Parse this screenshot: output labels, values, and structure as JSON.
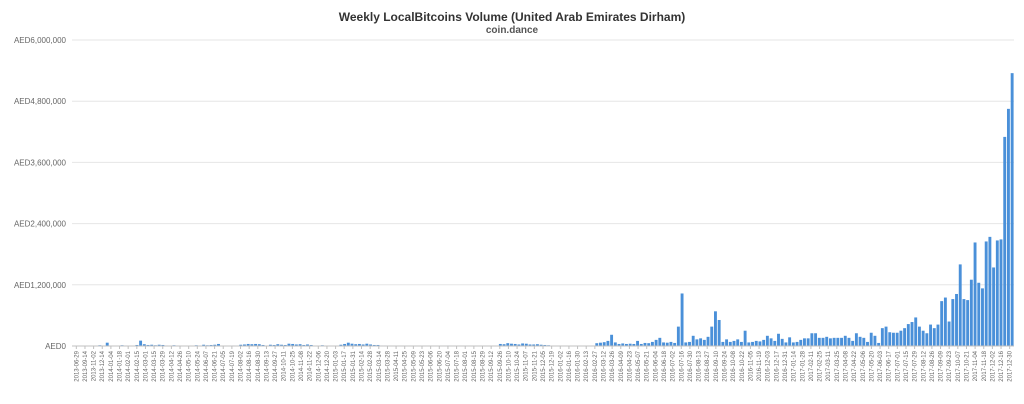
{
  "chart_data": {
    "type": "bar",
    "title": "Weekly LocalBitcoins Volume (United Arab Emirates Dirham)",
    "subtitle": "coin.dance",
    "color": "#4a90d9",
    "ylim": [
      0,
      6000000
    ],
    "y_ticks": [
      {
        "value": 0,
        "label": "AED0"
      },
      {
        "value": 1200000,
        "label": "AED1,200,000"
      },
      {
        "value": 2400000,
        "label": "AED2,400,000"
      },
      {
        "value": 3600000,
        "label": "AED3,600,000"
      },
      {
        "value": 4800000,
        "label": "AED4,800,000"
      },
      {
        "value": 6000000,
        "label": "AED6,000,000"
      }
    ],
    "x_tick_labels": [
      "2013-06-29",
      "2013-09-14",
      "2013-11-02",
      "2013-12-14",
      "2014-01-04",
      "2014-01-18",
      "2014-02-01",
      "2014-02-15",
      "2014-03-01",
      "2014-03-15",
      "2014-03-29",
      "2014-04-12",
      "2014-04-26",
      "2014-05-10",
      "2014-05-24",
      "2014-06-07",
      "2014-06-21",
      "2014-07-05",
      "2014-07-19",
      "2014-08-02",
      "2014-08-16",
      "2014-08-30",
      "2014-09-13",
      "2014-09-27",
      "2014-10-11",
      "2014-10-25",
      "2014-11-08",
      "2014-11-22",
      "2014-12-06",
      "2014-12-20",
      "2015-01-03",
      "2015-01-17",
      "2015-01-31",
      "2015-02-14",
      "2015-02-28",
      "2015-03-14",
      "2015-03-28",
      "2015-04-11",
      "2015-04-25",
      "2015-05-09",
      "2015-05-23",
      "2015-06-06",
      "2015-06-20",
      "2015-07-04",
      "2015-07-18",
      "2015-08-01",
      "2015-08-15",
      "2015-08-29",
      "2015-09-12",
      "2015-09-26",
      "2015-10-10",
      "2015-10-24",
      "2015-11-07",
      "2015-11-21",
      "2015-12-05",
      "2015-12-19",
      "2016-01-02",
      "2016-01-16",
      "2016-01-30",
      "2016-02-13",
      "2016-02-27",
      "2016-03-12",
      "2016-03-26",
      "2016-04-09",
      "2016-04-23",
      "2016-05-07",
      "2016-05-21",
      "2016-06-04",
      "2016-06-18",
      "2016-07-02",
      "2016-07-16",
      "2016-07-30",
      "2016-08-13",
      "2016-08-27",
      "2016-09-10",
      "2016-09-24",
      "2016-10-08",
      "2016-10-22",
      "2016-11-05",
      "2016-11-19",
      "2016-12-03",
      "2016-12-17",
      "2016-12-31",
      "2017-01-14",
      "2017-01-28",
      "2017-02-11",
      "2017-02-25",
      "2017-03-11",
      "2017-03-25",
      "2017-04-08",
      "2017-04-22",
      "2017-05-06",
      "2017-05-20",
      "2017-06-03",
      "2017-06-17",
      "2017-07-01",
      "2017-07-15",
      "2017-07-29",
      "2017-08-12",
      "2017-08-26",
      "2017-09-09",
      "2017-09-23",
      "2017-10-07",
      "2017-10-21",
      "2017-11-04",
      "2017-11-18",
      "2017-12-02",
      "2017-12-16",
      "2017-12-30"
    ],
    "values": [
      0,
      0,
      0,
      0,
      5000,
      0,
      0,
      15000,
      0,
      65000,
      0,
      0,
      0,
      15000,
      10000,
      8000,
      0,
      20000,
      105000,
      35000,
      20000,
      25000,
      15000,
      25000,
      20000,
      10000,
      5000,
      15000,
      10000,
      0,
      5000,
      0,
      0,
      15000,
      10000,
      25000,
      15000,
      20000,
      25000,
      40000,
      0,
      0,
      0,
      10000,
      0,
      25000,
      30000,
      40000,
      35000,
      40000,
      35000,
      20000,
      10000,
      25000,
      20000,
      35000,
      25000,
      20000,
      45000,
      40000,
      30000,
      35000,
      20000,
      30000,
      20000,
      0,
      0,
      15000,
      0,
      5000,
      0,
      0,
      25000,
      40000,
      65000,
      45000,
      35000,
      40000,
      30000,
      45000,
      30000,
      20000,
      20000,
      10000,
      10000,
      5000,
      0,
      0,
      0,
      5000,
      0,
      0,
      0,
      0,
      0,
      0,
      0,
      0,
      0,
      0,
      0,
      10000,
      0,
      5000,
      0,
      0,
      0,
      0,
      0,
      0,
      5000,
      5000,
      0,
      0,
      0,
      40000,
      35000,
      55000,
      45000,
      40000,
      30000,
      50000,
      45000,
      30000,
      30000,
      35000,
      25000,
      20000,
      15000,
      0,
      5000,
      0,
      0,
      0,
      0,
      0,
      0,
      0,
      0,
      0,
      10000,
      55000,
      65000,
      75000,
      100000,
      220000,
      70000,
      40000,
      50000,
      40000,
      45000,
      40000,
      100000,
      40000,
      60000,
      55000,
      80000,
      120000,
      160000,
      70000,
      65000,
      80000,
      60000,
      380000,
      1030000,
      70000,
      80000,
      200000,
      130000,
      150000,
      120000,
      180000,
      380000,
      680000,
      510000,
      80000,
      130000,
      80000,
      100000,
      130000,
      80000,
      300000,
      70000,
      80000,
      100000,
      90000,
      120000,
      200000,
      150000,
      100000,
      240000,
      140000,
      70000,
      170000,
      70000,
      80000,
      120000,
      150000,
      150000,
      250000,
      250000,
      160000,
      160000,
      180000,
      150000,
      160000,
      160000,
      160000,
      200000,
      160000,
      100000,
      250000,
      180000,
      160000,
      80000,
      260000,
      200000,
      60000,
      350000,
      380000,
      270000,
      260000,
      260000,
      300000,
      350000,
      430000,
      470000,
      560000,
      380000,
      300000,
      250000,
      420000,
      350000,
      420000,
      880000,
      950000,
      480000,
      920000,
      1020000,
      1600000,
      920000,
      900000,
      1300000,
      2030000,
      1240000,
      1130000,
      2050000,
      2140000,
      1540000,
      2070000,
      2090000,
      4100000,
      4650000,
      5350000
    ]
  }
}
